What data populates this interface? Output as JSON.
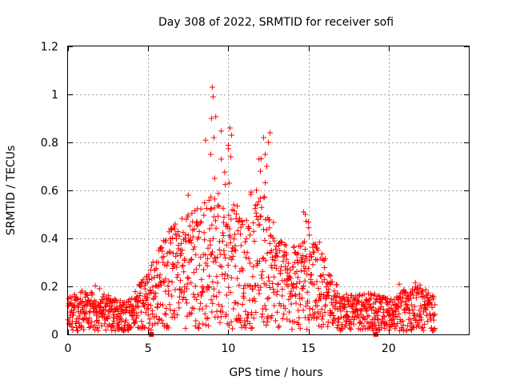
{
  "chart_data": {
    "type": "scatter",
    "title": "Day 308 of 2022, SRMTID for receiver sofi",
    "xlabel": "GPS time / hours",
    "ylabel": "SRMTID / TECUs",
    "xlim": [
      0,
      25
    ],
    "ylim": [
      0,
      1.2
    ],
    "xticks": [
      0,
      5,
      10,
      15,
      20
    ],
    "yticks": [
      0,
      0.2,
      0.4,
      0.6,
      0.8,
      1,
      1.2
    ],
    "xtick_labels": [
      "0",
      "5",
      "10",
      "15",
      "20"
    ],
    "ytick_labels": [
      "0",
      "0.2",
      "0.4",
      "0.6",
      "0.8",
      "1",
      "1.2"
    ],
    "grid": true,
    "marker": "+",
    "color": "#ff0000",
    "data_range": [
      0,
      22.9
    ],
    "gap_markers": [
      {
        "x": 5.2,
        "y": 0
      },
      {
        "x": 19.2,
        "y": 0
      }
    ],
    "envelope": [
      {
        "t": 0.0,
        "median": 0.09,
        "upper": 0.16
      },
      {
        "t": 1.0,
        "median": 0.1,
        "upper": 0.24
      },
      {
        "t": 2.0,
        "median": 0.09,
        "upper": 0.2
      },
      {
        "t": 3.0,
        "median": 0.08,
        "upper": 0.17
      },
      {
        "t": 4.0,
        "median": 0.09,
        "upper": 0.18
      },
      {
        "t": 5.0,
        "median": 0.14,
        "upper": 0.25
      },
      {
        "t": 6.0,
        "median": 0.22,
        "upper": 0.45
      },
      {
        "t": 7.0,
        "median": 0.25,
        "upper": 0.5
      },
      {
        "t": 8.0,
        "median": 0.28,
        "upper": 0.52
      },
      {
        "t": 9.0,
        "median": 0.32,
        "upper": 1.03
      },
      {
        "t": 10.0,
        "median": 0.3,
        "upper": 0.86
      },
      {
        "t": 11.0,
        "median": 0.25,
        "upper": 0.45
      },
      {
        "t": 12.0,
        "median": 0.3,
        "upper": 0.82
      },
      {
        "t": 13.0,
        "median": 0.22,
        "upper": 0.4
      },
      {
        "t": 14.0,
        "median": 0.2,
        "upper": 0.35
      },
      {
        "t": 15.0,
        "median": 0.22,
        "upper": 0.51
      },
      {
        "t": 16.0,
        "median": 0.18,
        "upper": 0.45
      },
      {
        "t": 17.0,
        "median": 0.09,
        "upper": 0.19
      },
      {
        "t": 18.0,
        "median": 0.09,
        "upper": 0.17
      },
      {
        "t": 19.0,
        "median": 0.1,
        "upper": 0.17
      },
      {
        "t": 20.0,
        "median": 0.08,
        "upper": 0.18
      },
      {
        "t": 21.0,
        "median": 0.1,
        "upper": 0.24
      },
      {
        "t": 22.0,
        "median": 0.11,
        "upper": 0.22
      },
      {
        "t": 22.9,
        "median": 0.09,
        "upper": 0.17
      }
    ],
    "peaks": [
      {
        "x": 9.0,
        "y": 1.03
      },
      {
        "x": 9.05,
        "y": 0.99
      },
      {
        "x": 8.95,
        "y": 0.9
      },
      {
        "x": 9.1,
        "y": 0.82
      },
      {
        "x": 8.9,
        "y": 0.75
      },
      {
        "x": 9.15,
        "y": 0.65
      },
      {
        "x": 10.1,
        "y": 0.86
      },
      {
        "x": 10.2,
        "y": 0.83
      },
      {
        "x": 10.15,
        "y": 0.74
      },
      {
        "x": 10.05,
        "y": 0.63
      },
      {
        "x": 12.6,
        "y": 0.84
      },
      {
        "x": 12.5,
        "y": 0.8
      },
      {
        "x": 12.2,
        "y": 0.82
      },
      {
        "x": 12.3,
        "y": 0.75
      },
      {
        "x": 12.0,
        "y": 0.68
      },
      {
        "x": 12.4,
        "y": 0.7
      },
      {
        "x": 7.5,
        "y": 0.58
      },
      {
        "x": 14.7,
        "y": 0.51
      },
      {
        "x": 14.8,
        "y": 0.5
      }
    ]
  }
}
